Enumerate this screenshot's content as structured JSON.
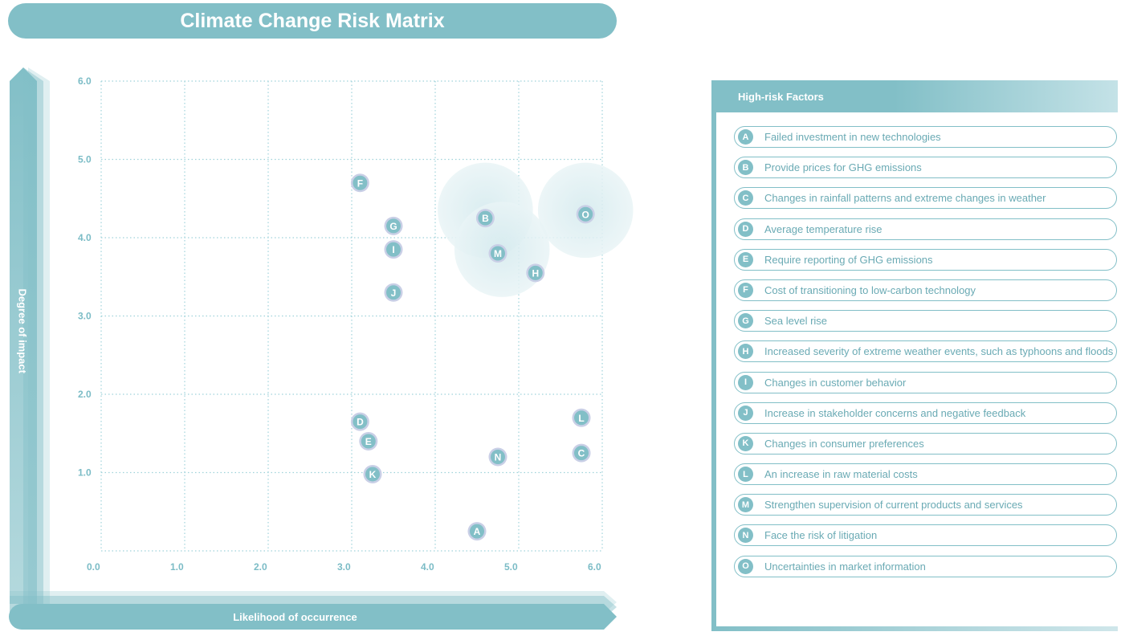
{
  "title": "Climate Change Risk Matrix",
  "colors": {
    "accent": "#82bfc7",
    "tick_text": "#7bbcc6",
    "grid": "#9fd2da",
    "bubble_fill": "#e3f1f3",
    "point_ring": "#c9cfe6"
  },
  "chart_data": {
    "type": "scatter",
    "title": "Climate Change Risk Matrix",
    "xlabel": "Likelihood of occurrence",
    "ylabel": "Degree of impact",
    "xlim": [
      0,
      6
    ],
    "ylim": [
      0,
      6
    ],
    "x_ticks": [
      "0.0",
      "1.0",
      "2.0",
      "3.0",
      "4.0",
      "5.0",
      "6.0"
    ],
    "y_ticks": [
      "1.0",
      "2.0",
      "3.0",
      "4.0",
      "5.0",
      "6.0"
    ],
    "grid": true,
    "points": [
      {
        "label": "A",
        "x": 4.5,
        "y": 0.25
      },
      {
        "label": "B",
        "x": 4.6,
        "y": 4.25
      },
      {
        "label": "C",
        "x": 5.75,
        "y": 1.25
      },
      {
        "label": "D",
        "x": 3.1,
        "y": 1.65
      },
      {
        "label": "E",
        "x": 3.2,
        "y": 1.4
      },
      {
        "label": "F",
        "x": 3.1,
        "y": 4.7
      },
      {
        "label": "G",
        "x": 3.5,
        "y": 4.15
      },
      {
        "label": "H",
        "x": 5.2,
        "y": 3.55
      },
      {
        "label": "I",
        "x": 3.5,
        "y": 3.85
      },
      {
        "label": "J",
        "x": 3.5,
        "y": 3.3
      },
      {
        "label": "K",
        "x": 3.25,
        "y": 0.98
      },
      {
        "label": "L",
        "x": 5.75,
        "y": 1.7
      },
      {
        "label": "M",
        "x": 4.75,
        "y": 3.8
      },
      {
        "label": "N",
        "x": 4.75,
        "y": 1.2
      },
      {
        "label": "O",
        "x": 5.8,
        "y": 4.3
      }
    ],
    "highlight_zones": [
      {
        "x": 4.6,
        "y": 4.35,
        "r": 0.57
      },
      {
        "x": 4.8,
        "y": 3.85,
        "r": 0.57
      },
      {
        "x": 5.8,
        "y": 4.35,
        "r": 0.57
      }
    ]
  },
  "legend": {
    "title": "High-risk Factors",
    "items": [
      {
        "key": "A",
        "text": "Failed investment in new technologies"
      },
      {
        "key": "B",
        "text": "Provide prices for GHG emissions"
      },
      {
        "key": "C",
        "text": "Changes in rainfall patterns and extreme changes in weather"
      },
      {
        "key": "D",
        "text": "Average temperature rise"
      },
      {
        "key": "E",
        "text": "Require reporting of GHG emissions"
      },
      {
        "key": "F",
        "text": "Cost of transitioning to low-carbon technology"
      },
      {
        "key": "G",
        "text": "Sea level rise"
      },
      {
        "key": "H",
        "text": "Increased severity of extreme weather events, such as typhoons and floods"
      },
      {
        "key": "I",
        "text": "Changes in customer behavior"
      },
      {
        "key": "J",
        "text": "Increase in stakeholder concerns and negative feedback"
      },
      {
        "key": "K",
        "text": "Changes in consumer preferences"
      },
      {
        "key": "L",
        "text": "An increase in raw material costs"
      },
      {
        "key": "M",
        "text": "Strengthen supervision of current products and services"
      },
      {
        "key": "N",
        "text": "Face the risk of litigation"
      },
      {
        "key": "O",
        "text": "Uncertainties in market information"
      }
    ]
  }
}
